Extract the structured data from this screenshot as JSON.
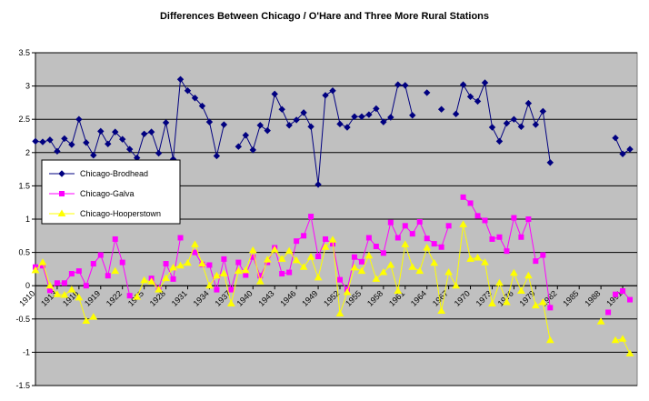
{
  "chart_data": {
    "type": "line",
    "title": "Differences Between Chicago / O'Hare and Three More Rural Stations",
    "xlabel": "",
    "ylabel": "",
    "xlim": [
      1910,
      1993
    ],
    "ylim": [
      -1.5,
      3.5
    ],
    "yticks": [
      -1.5,
      -1,
      -0.5,
      0,
      0.5,
      1,
      1.5,
      2,
      2.5,
      3,
      3.5
    ],
    "ytick_labels": [
      "-1.5",
      "-1",
      "-0.5",
      "0",
      "0.5",
      "1",
      "1.5",
      "2",
      "2.5",
      "3",
      "3.5"
    ],
    "xticks": [
      1910,
      1913,
      1916,
      1919,
      1922,
      1925,
      1928,
      1931,
      1934,
      1937,
      1940,
      1943,
      1946,
      1949,
      1952,
      1955,
      1958,
      1961,
      1964,
      1967,
      1970,
      1973,
      1976,
      1979,
      1982,
      1985,
      1988,
      1991
    ],
    "xtick_labels": [
      "1910",
      "1913",
      "1916",
      "1919",
      "1922",
      "1925",
      "1928",
      "1931",
      "1934",
      "1937",
      "1940",
      "1943",
      "1946",
      "1949",
      "1952",
      "1955",
      "1958",
      "1961",
      "1964",
      "1967",
      "1970",
      "1973",
      "1976",
      "1979",
      "1982",
      "1985",
      "1988",
      "1991"
    ],
    "grid": true,
    "legend_position": "middle-left",
    "background_color": "#c0c0c0",
    "series": [
      {
        "name": "Chicago-Brodhead",
        "color": "#000080",
        "marker": "diamond",
        "points": [
          [
            1910,
            2.17
          ],
          [
            1911,
            2.16
          ],
          [
            1912,
            2.19
          ],
          [
            1913,
            2.02
          ],
          [
            1914,
            2.21
          ],
          [
            1915,
            2.12
          ],
          [
            1916,
            2.5
          ],
          [
            1917,
            2.15
          ],
          [
            1918,
            1.96
          ],
          [
            1919,
            2.32
          ],
          [
            1920,
            2.13
          ],
          [
            1921,
            2.31
          ],
          [
            1922,
            2.2
          ],
          [
            1923,
            2.05
          ],
          [
            1924,
            1.92
          ],
          [
            1925,
            2.28
          ],
          [
            1926,
            2.31
          ],
          [
            1927,
            1.99
          ],
          [
            1928,
            2.45
          ],
          [
            1929,
            1.9
          ],
          [
            1930,
            3.1
          ],
          [
            1931,
            2.93
          ],
          [
            1932,
            2.82
          ],
          [
            1933,
            2.7
          ],
          [
            1934,
            2.46
          ],
          [
            1935,
            1.95
          ],
          [
            1936,
            2.42
          ],
          null,
          [
            1938,
            2.09
          ],
          [
            1939,
            2.26
          ],
          [
            1940,
            2.04
          ],
          [
            1941,
            2.41
          ],
          [
            1942,
            2.33
          ],
          [
            1943,
            2.88
          ],
          [
            1944,
            2.65
          ],
          [
            1945,
            2.41
          ],
          [
            1946,
            2.49
          ],
          [
            1947,
            2.6
          ],
          [
            1948,
            2.39
          ],
          [
            1949,
            1.52
          ],
          [
            1950,
            2.86
          ],
          [
            1951,
            2.93
          ],
          [
            1952,
            2.43
          ],
          [
            1953,
            2.38
          ],
          [
            1954,
            2.54
          ],
          [
            1955,
            2.54
          ],
          [
            1956,
            2.57
          ],
          [
            1957,
            2.66
          ],
          [
            1958,
            2.46
          ],
          [
            1959,
            2.53
          ],
          [
            1960,
            3.02
          ],
          [
            1961,
            3.01
          ],
          [
            1962,
            2.56
          ],
          null,
          [
            1964,
            2.9
          ],
          null,
          [
            1966,
            2.65
          ],
          null,
          [
            1968,
            2.58
          ],
          [
            1969,
            3.02
          ],
          [
            1970,
            2.84
          ],
          [
            1971,
            2.77
          ],
          [
            1972,
            3.05
          ],
          [
            1973,
            2.38
          ],
          [
            1974,
            2.17
          ],
          [
            1975,
            2.44
          ],
          [
            1976,
            2.5
          ],
          [
            1977,
            2.39
          ],
          [
            1978,
            2.74
          ],
          [
            1979,
            2.42
          ],
          [
            1980,
            2.62
          ],
          [
            1981,
            1.85
          ],
          null,
          [
            1990,
            2.22
          ],
          [
            1991,
            1.98
          ],
          [
            1992,
            2.05
          ]
        ]
      },
      {
        "name": "Chicago-Galva",
        "color": "#ff00ff",
        "marker": "square",
        "points": [
          [
            1910,
            0.28
          ],
          [
            1911,
            0.3
          ],
          [
            1912,
            -0.07
          ],
          [
            1913,
            0.04
          ],
          [
            1914,
            0.04
          ],
          [
            1915,
            0.18
          ],
          [
            1916,
            0.22
          ],
          [
            1917,
            0.0
          ],
          [
            1918,
            0.33
          ],
          [
            1919,
            0.46
          ],
          [
            1920,
            0.15
          ],
          [
            1921,
            0.7
          ],
          [
            1922,
            0.35
          ],
          [
            1923,
            -0.15
          ],
          null,
          [
            1926,
            0.11
          ],
          [
            1927,
            -0.05
          ],
          [
            1928,
            0.33
          ],
          [
            1929,
            0.1
          ],
          [
            1930,
            0.72
          ],
          null,
          [
            1932,
            0.5
          ],
          [
            1933,
            0.32
          ],
          [
            1934,
            0.31
          ],
          [
            1935,
            -0.06
          ],
          [
            1936,
            0.4
          ],
          [
            1937,
            -0.06
          ],
          [
            1938,
            0.35
          ],
          [
            1939,
            0.16
          ],
          [
            1940,
            0.43
          ],
          [
            1941,
            0.15
          ],
          [
            1942,
            0.35
          ],
          [
            1943,
            0.57
          ],
          [
            1944,
            0.18
          ],
          [
            1945,
            0.2
          ],
          [
            1946,
            0.67
          ],
          [
            1947,
            0.75
          ],
          [
            1948,
            1.04
          ],
          [
            1949,
            0.44
          ],
          [
            1950,
            0.7
          ],
          [
            1951,
            0.63
          ],
          [
            1952,
            0.09
          ],
          [
            1953,
            -0.06
          ],
          [
            1954,
            0.43
          ],
          [
            1955,
            0.36
          ],
          [
            1956,
            0.72
          ],
          [
            1957,
            0.59
          ],
          [
            1958,
            0.49
          ],
          [
            1959,
            0.95
          ],
          [
            1960,
            0.72
          ],
          [
            1961,
            0.9
          ],
          [
            1962,
            0.78
          ],
          [
            1963,
            0.96
          ],
          [
            1964,
            0.71
          ],
          [
            1965,
            0.63
          ],
          [
            1966,
            0.58
          ],
          [
            1967,
            0.9
          ],
          null,
          [
            1969,
            1.33
          ],
          [
            1970,
            1.24
          ],
          [
            1971,
            1.05
          ],
          [
            1972,
            0.98
          ],
          [
            1973,
            0.7
          ],
          [
            1974,
            0.73
          ],
          [
            1975,
            0.52
          ],
          [
            1976,
            1.02
          ],
          [
            1977,
            0.73
          ],
          [
            1978,
            1.0
          ],
          [
            1979,
            0.37
          ],
          [
            1980,
            0.46
          ],
          [
            1981,
            -0.33
          ],
          null,
          [
            1989,
            -0.4
          ],
          null,
          [
            1990,
            -0.13
          ],
          [
            1991,
            -0.08
          ],
          [
            1992,
            -0.21
          ]
        ]
      },
      {
        "name": "Chicago-Hooperstown",
        "color": "#ffff00",
        "marker": "triangle",
        "points": [
          [
            1910,
            0.23
          ],
          [
            1911,
            0.35
          ],
          [
            1912,
            0.0
          ],
          [
            1913,
            -0.13
          ],
          [
            1914,
            -0.14
          ],
          [
            1915,
            -0.06
          ],
          [
            1916,
            -0.18
          ],
          [
            1917,
            -0.53
          ],
          [
            1918,
            -0.47
          ],
          null,
          [
            1921,
            0.22
          ],
          null,
          [
            1924,
            -0.17
          ],
          [
            1925,
            0.08
          ],
          [
            1926,
            0.06
          ],
          [
            1927,
            -0.06
          ],
          [
            1928,
            0.11
          ],
          [
            1929,
            0.27
          ],
          [
            1930,
            0.3
          ],
          [
            1931,
            0.34
          ],
          [
            1932,
            0.62
          ],
          [
            1933,
            0.33
          ],
          [
            1934,
            0.0
          ],
          [
            1935,
            0.15
          ],
          [
            1936,
            0.18
          ],
          [
            1937,
            -0.27
          ],
          [
            1938,
            0.22
          ],
          [
            1939,
            0.23
          ],
          [
            1940,
            0.53
          ],
          [
            1941,
            0.06
          ],
          [
            1942,
            0.39
          ],
          [
            1943,
            0.54
          ],
          [
            1944,
            0.4
          ],
          [
            1945,
            0.52
          ],
          [
            1946,
            0.38
          ],
          [
            1947,
            0.28
          ],
          [
            1948,
            0.43
          ],
          [
            1949,
            0.12
          ],
          [
            1950,
            0.58
          ],
          [
            1951,
            0.69
          ],
          [
            1952,
            -0.42
          ],
          [
            1953,
            -0.1
          ],
          [
            1954,
            0.27
          ],
          [
            1955,
            0.22
          ],
          [
            1956,
            0.45
          ],
          [
            1957,
            0.1
          ],
          [
            1958,
            0.2
          ],
          [
            1959,
            0.31
          ],
          [
            1960,
            -0.08
          ],
          [
            1961,
            0.62
          ],
          [
            1962,
            0.28
          ],
          [
            1963,
            0.22
          ],
          [
            1964,
            0.57
          ],
          [
            1965,
            0.34
          ],
          [
            1966,
            -0.38
          ],
          [
            1967,
            0.2
          ],
          [
            1968,
            0.0
          ],
          [
            1969,
            0.92
          ],
          [
            1970,
            0.4
          ],
          [
            1971,
            0.42
          ],
          [
            1972,
            0.35
          ],
          [
            1973,
            -0.27
          ],
          [
            1974,
            0.04
          ],
          [
            1975,
            -0.25
          ],
          [
            1976,
            0.19
          ],
          [
            1977,
            -0.08
          ],
          [
            1978,
            0.15
          ],
          [
            1979,
            -0.3
          ],
          [
            1980,
            -0.25
          ],
          [
            1981,
            -0.82
          ],
          null,
          [
            1988,
            -0.54
          ],
          null,
          [
            1990,
            -0.82
          ],
          [
            1991,
            -0.8
          ],
          [
            1992,
            -1.02
          ]
        ]
      }
    ]
  }
}
